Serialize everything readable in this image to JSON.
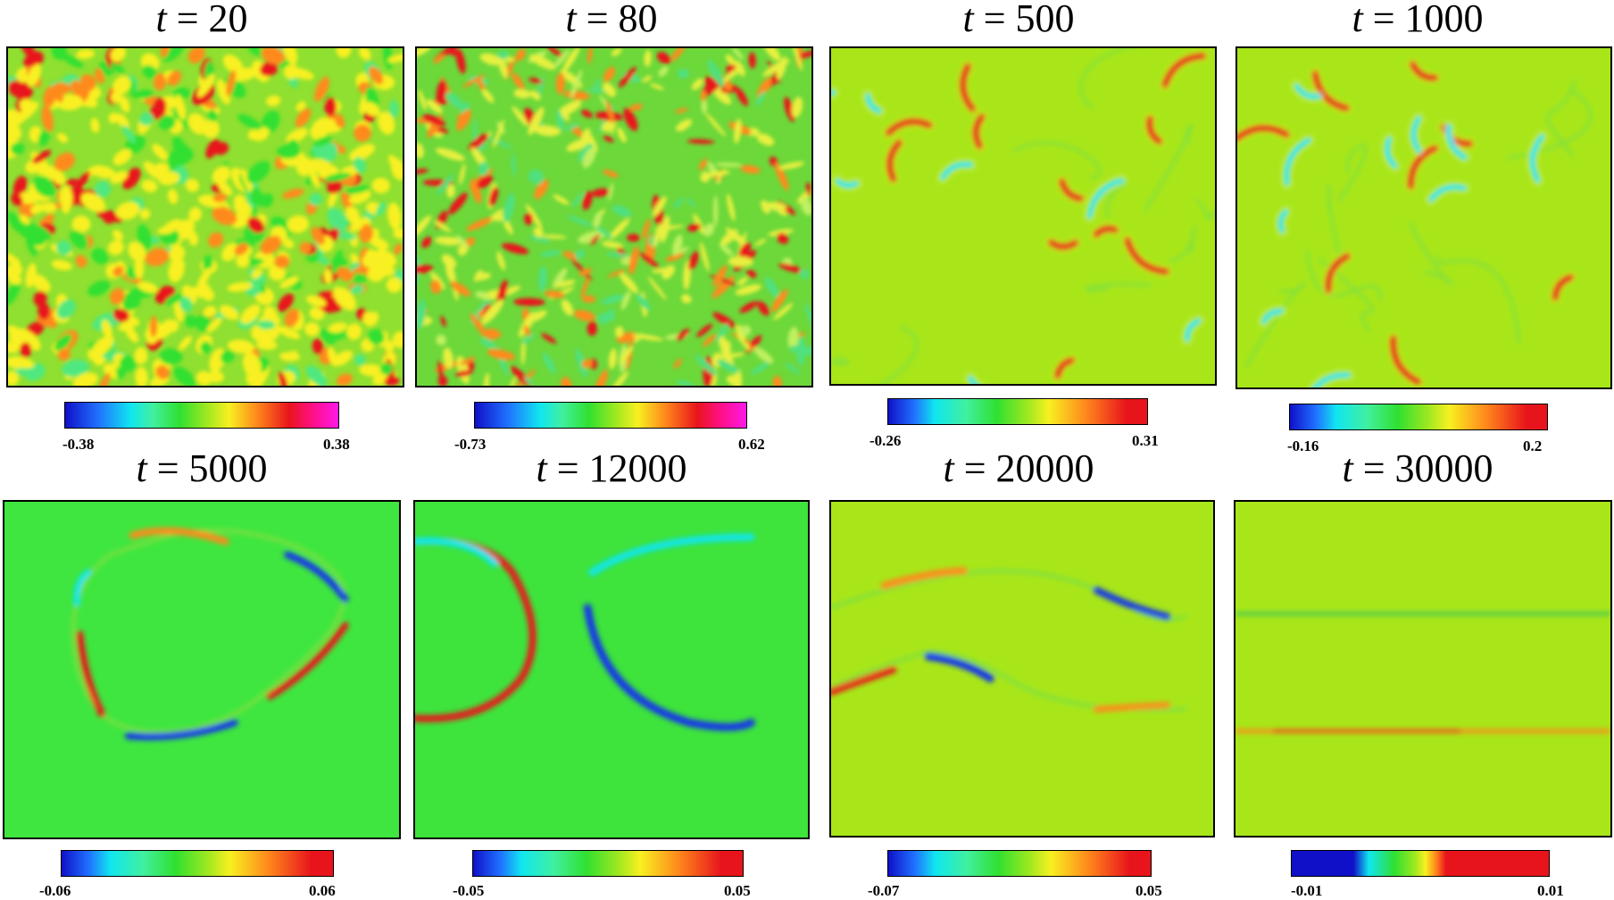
{
  "panels": [
    {
      "id": "p1",
      "time": "20",
      "min": "-0.38",
      "max": "0.38",
      "bg": "#8fe030",
      "cmap": "rainbow-magenta",
      "pattern": "dense"
    },
    {
      "id": "p2",
      "time": "80",
      "min": "-0.73",
      "max": "0.62",
      "bg": "#6dd83a",
      "cmap": "rainbow-magenta",
      "pattern": "sparse-dense"
    },
    {
      "id": "p3",
      "time": "500",
      "min": "-0.26",
      "max": "0.31",
      "bg": "#a8e619",
      "cmap": "rainbow",
      "pattern": "curves"
    },
    {
      "id": "p4",
      "time": "1000",
      "min": "-0.16",
      "max": "0.2",
      "bg": "#a8e619",
      "cmap": "rainbow",
      "pattern": "curves"
    },
    {
      "id": "p5",
      "time": "5000",
      "min": "-0.06",
      "max": "0.06",
      "bg": "#3fe63f",
      "cmap": "rainbow",
      "pattern": "loop"
    },
    {
      "id": "p6",
      "time": "12000",
      "min": "-0.05",
      "max": "0.05",
      "bg": "#3ee33c",
      "cmap": "rainbow",
      "pattern": "two-arcs"
    },
    {
      "id": "p7",
      "time": "20000",
      "min": "-0.07",
      "max": "0.05",
      "bg": "#a8e619",
      "cmap": "rainbow",
      "pattern": "bands"
    },
    {
      "id": "p8",
      "time": "30000",
      "min": "-0.01",
      "max": "0.01",
      "bg": "#a8e619",
      "cmap": "step",
      "pattern": "lines"
    }
  ],
  "colors": {
    "red": "#e8141c",
    "orange": "#ff8a1c",
    "yellow": "#f8f020",
    "green": "#30e030",
    "cyan": "#10e6f0",
    "blue": "#1838e8",
    "darkblue": "#1010c8",
    "magenta": "#ff18e8"
  },
  "time_symbol": "t",
  "equals": "="
}
